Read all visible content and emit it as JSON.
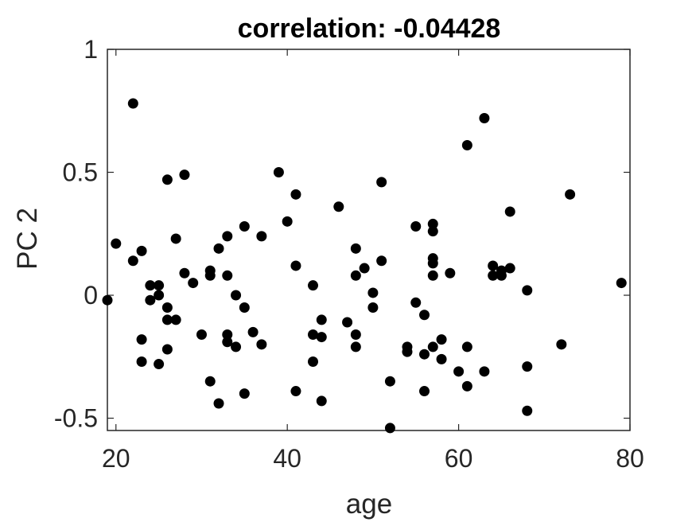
{
  "chart_data": {
    "type": "scatter",
    "title": "correlation: -0.04428",
    "xlabel": "age",
    "ylabel": "PC 2",
    "xlim": [
      19,
      80
    ],
    "ylim": [
      -0.55,
      1.0
    ],
    "xticks": [
      20,
      40,
      60,
      80
    ],
    "yticks": [
      -0.5,
      0,
      0.5,
      1
    ],
    "xtick_labels": [
      "20",
      "40",
      "60",
      "80"
    ],
    "ytick_labels": [
      "-0.5",
      "0",
      "0.5",
      "1"
    ],
    "grid": false,
    "marker_color": "#000000",
    "points": [
      {
        "x": 19,
        "y": -0.02
      },
      {
        "x": 20,
        "y": 0.21
      },
      {
        "x": 22,
        "y": 0.78
      },
      {
        "x": 22,
        "y": 0.14
      },
      {
        "x": 23,
        "y": 0.18
      },
      {
        "x": 23,
        "y": -0.18
      },
      {
        "x": 23,
        "y": -0.27
      },
      {
        "x": 24,
        "y": 0.04
      },
      {
        "x": 24,
        "y": -0.02
      },
      {
        "x": 25,
        "y": 0.04
      },
      {
        "x": 25,
        "y": 0.0
      },
      {
        "x": 25,
        "y": -0.28
      },
      {
        "x": 26,
        "y": 0.47
      },
      {
        "x": 26,
        "y": -0.05
      },
      {
        "x": 26,
        "y": -0.1
      },
      {
        "x": 26,
        "y": -0.22
      },
      {
        "x": 27,
        "y": 0.23
      },
      {
        "x": 27,
        "y": -0.1
      },
      {
        "x": 28,
        "y": 0.49
      },
      {
        "x": 28,
        "y": 0.09
      },
      {
        "x": 29,
        "y": 0.05
      },
      {
        "x": 30,
        "y": -0.16
      },
      {
        "x": 31,
        "y": 0.1
      },
      {
        "x": 31,
        "y": 0.08
      },
      {
        "x": 31,
        "y": -0.35
      },
      {
        "x": 32,
        "y": 0.19
      },
      {
        "x": 32,
        "y": -0.44
      },
      {
        "x": 33,
        "y": 0.24
      },
      {
        "x": 33,
        "y": 0.08
      },
      {
        "x": 33,
        "y": -0.16
      },
      {
        "x": 33,
        "y": -0.19
      },
      {
        "x": 34,
        "y": 0.0
      },
      {
        "x": 34,
        "y": -0.21
      },
      {
        "x": 35,
        "y": 0.28
      },
      {
        "x": 35,
        "y": -0.05
      },
      {
        "x": 35,
        "y": -0.4
      },
      {
        "x": 36,
        "y": -0.15
      },
      {
        "x": 37,
        "y": 0.24
      },
      {
        "x": 37,
        "y": -0.2
      },
      {
        "x": 39,
        "y": 0.5
      },
      {
        "x": 40,
        "y": 0.3
      },
      {
        "x": 41,
        "y": 0.41
      },
      {
        "x": 41,
        "y": 0.12
      },
      {
        "x": 41,
        "y": -0.39
      },
      {
        "x": 43,
        "y": 0.04
      },
      {
        "x": 43,
        "y": -0.16
      },
      {
        "x": 43,
        "y": -0.27
      },
      {
        "x": 44,
        "y": -0.1
      },
      {
        "x": 44,
        "y": -0.17
      },
      {
        "x": 44,
        "y": -0.43
      },
      {
        "x": 46,
        "y": 0.36
      },
      {
        "x": 47,
        "y": -0.11
      },
      {
        "x": 48,
        "y": 0.19
      },
      {
        "x": 48,
        "y": 0.08
      },
      {
        "x": 48,
        "y": -0.16
      },
      {
        "x": 48,
        "y": -0.21
      },
      {
        "x": 49,
        "y": 0.11
      },
      {
        "x": 50,
        "y": 0.01
      },
      {
        "x": 50,
        "y": -0.05
      },
      {
        "x": 51,
        "y": 0.46
      },
      {
        "x": 51,
        "y": 0.14
      },
      {
        "x": 52,
        "y": -0.35
      },
      {
        "x": 52,
        "y": -0.54
      },
      {
        "x": 54,
        "y": -0.21
      },
      {
        "x": 54,
        "y": -0.23
      },
      {
        "x": 55,
        "y": 0.28
      },
      {
        "x": 55,
        "y": -0.03
      },
      {
        "x": 56,
        "y": -0.08
      },
      {
        "x": 56,
        "y": -0.24
      },
      {
        "x": 56,
        "y": -0.39
      },
      {
        "x": 57,
        "y": 0.29
      },
      {
        "x": 57,
        "y": 0.26
      },
      {
        "x": 57,
        "y": 0.15
      },
      {
        "x": 57,
        "y": 0.13
      },
      {
        "x": 57,
        "y": 0.08
      },
      {
        "x": 57,
        "y": -0.21
      },
      {
        "x": 58,
        "y": -0.18
      },
      {
        "x": 58,
        "y": -0.26
      },
      {
        "x": 59,
        "y": 0.09
      },
      {
        "x": 60,
        "y": -0.31
      },
      {
        "x": 61,
        "y": 0.61
      },
      {
        "x": 61,
        "y": -0.21
      },
      {
        "x": 61,
        "y": -0.37
      },
      {
        "x": 63,
        "y": 0.72
      },
      {
        "x": 63,
        "y": -0.31
      },
      {
        "x": 64,
        "y": 0.12
      },
      {
        "x": 64,
        "y": 0.08
      },
      {
        "x": 65,
        "y": 0.1
      },
      {
        "x": 65,
        "y": 0.08
      },
      {
        "x": 66,
        "y": 0.34
      },
      {
        "x": 66,
        "y": 0.11
      },
      {
        "x": 68,
        "y": 0.02
      },
      {
        "x": 68,
        "y": -0.29
      },
      {
        "x": 68,
        "y": -0.47
      },
      {
        "x": 72,
        "y": -0.2
      },
      {
        "x": 73,
        "y": 0.41
      },
      {
        "x": 79,
        "y": 0.05
      }
    ]
  }
}
